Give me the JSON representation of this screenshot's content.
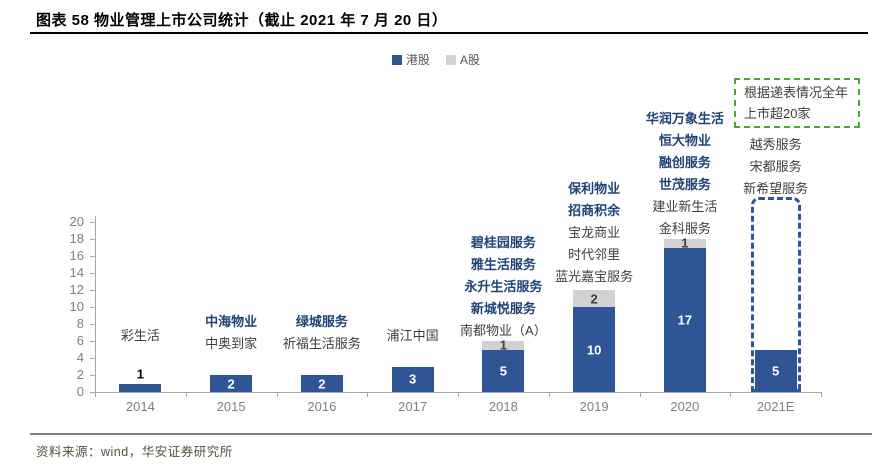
{
  "header": {
    "title": "图表 58 物业管理上市公司统计（截止 2021 年 7 月 20 日）"
  },
  "legend": [
    {
      "label": "港股",
      "color": "#2f5597"
    },
    {
      "label": "A股",
      "color": "#d2d2d2"
    }
  ],
  "note_box": {
    "text": "根据递表情况全年上市超20家",
    "border_color": "#4ea72e"
  },
  "source": {
    "text": "资料来源：wind，华安证券研究所"
  },
  "colors": {
    "bar_blue": "#2f5597",
    "bar_gray": "#d2d2d2",
    "value_on_blue": "#ffffff",
    "value_on_gray": "#404040",
    "value_above_bar": "#000000",
    "highlight_text": "#1f4377",
    "annotation_text": "#3f3f3f",
    "axis_text": "#7f7f7f",
    "axis_line": "#a6a6a6",
    "note_green": "#4ea72e"
  },
  "chart_data": {
    "type": "bar",
    "stacked": true,
    "title": "物业管理上市公司统计（截止 2021 年 7 月 20 日）",
    "categories": [
      "2014",
      "2015",
      "2016",
      "2017",
      "2018",
      "2019",
      "2020",
      "2021E"
    ],
    "series": [
      {
        "name": "港股",
        "color": "#2f5597",
        "values": [
          1,
          2,
          2,
          3,
          5,
          10,
          17,
          5
        ]
      },
      {
        "name": "A股",
        "color": "#d2d2d2",
        "values": [
          0,
          0,
          0,
          0,
          1,
          2,
          1,
          0
        ]
      }
    ],
    "xlabel": "",
    "ylabel": "",
    "ylim": [
      0,
      20
    ],
    "yticks": [
      0,
      2,
      4,
      6,
      8,
      10,
      12,
      14,
      16,
      18,
      20
    ],
    "grid": false,
    "legend_position": "top",
    "projection": {
      "category": "2021E",
      "top_value": 23,
      "style": "dashed-outline"
    },
    "annotations": {
      "2014": [
        {
          "text": "彩生活",
          "highlight": false
        }
      ],
      "2015": [
        {
          "text": "中海物业",
          "highlight": true
        },
        {
          "text": "中奥到家",
          "highlight": false
        }
      ],
      "2016": [
        {
          "text": "绿城服务",
          "highlight": true
        },
        {
          "text": "祈福生活服务",
          "highlight": false
        }
      ],
      "2017": [
        {
          "text": "浦江中国",
          "highlight": false
        }
      ],
      "2018": [
        {
          "text": "碧桂园服务",
          "highlight": true
        },
        {
          "text": "雅生活服务",
          "highlight": true
        },
        {
          "text": "永升生活服务",
          "highlight": true
        },
        {
          "text": "新城悦服务",
          "highlight": true
        },
        {
          "text": "南都物业（A）",
          "highlight": false
        }
      ],
      "2019": [
        {
          "text": "保利物业",
          "highlight": true
        },
        {
          "text": "招商积余",
          "highlight": true
        },
        {
          "text": "宝龙商业",
          "highlight": false
        },
        {
          "text": "时代邻里",
          "highlight": false
        },
        {
          "text": "蓝光嘉宝服务",
          "highlight": false
        }
      ],
      "2020": [
        {
          "text": "华润万象生活",
          "highlight": true
        },
        {
          "text": "恒大物业",
          "highlight": true
        },
        {
          "text": "融创服务",
          "highlight": true
        },
        {
          "text": "世茂服务",
          "highlight": true
        },
        {
          "text": "建业新生活",
          "highlight": false
        },
        {
          "text": "金科服务",
          "highlight": false
        }
      ],
      "2021E": [
        {
          "text": "越秀服务",
          "highlight": false
        },
        {
          "text": "宋都服务",
          "highlight": false
        },
        {
          "text": "新希望服务",
          "highlight": false
        }
      ]
    }
  }
}
